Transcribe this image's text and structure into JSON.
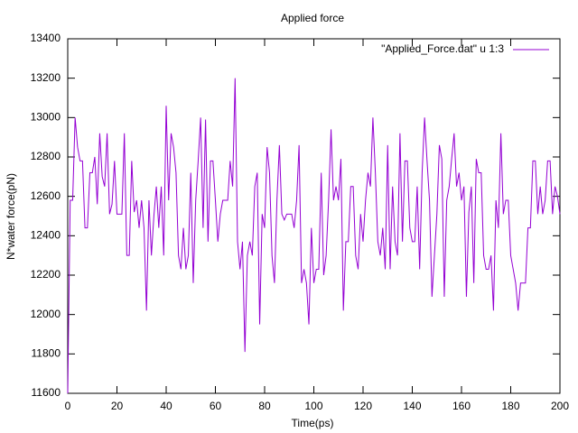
{
  "chart_data": {
    "type": "line",
    "title": "Applied force",
    "xlabel": "Time(ps)",
    "ylabel": "N*water force(pN)",
    "x": [
      0,
      1,
      2,
      3,
      4,
      5,
      6,
      7,
      8,
      9,
      10,
      11,
      12,
      13,
      14,
      15,
      16,
      17,
      18,
      19,
      20,
      21,
      22,
      23,
      24,
      25,
      26,
      27,
      28,
      29,
      30,
      31,
      32,
      33,
      34,
      35,
      36,
      37,
      38,
      39,
      40,
      41,
      42,
      43,
      44,
      45,
      46,
      47,
      48,
      49,
      50,
      51,
      52,
      53,
      54,
      55,
      56,
      57,
      58,
      59,
      60,
      61,
      62,
      63,
      64,
      65,
      66,
      67,
      68,
      69,
      70,
      71,
      72,
      73,
      74,
      75,
      76,
      77,
      78,
      79,
      80,
      81,
      82,
      83,
      84,
      85,
      86,
      87,
      88,
      89,
      90,
      91,
      92,
      93,
      94,
      95,
      96,
      97,
      98,
      99,
      100,
      101,
      102,
      103,
      104,
      105,
      106,
      107,
      108,
      109,
      110,
      111,
      112,
      113,
      114,
      115,
      116,
      117,
      118,
      119,
      120,
      121,
      122,
      123,
      124,
      125,
      126,
      127,
      128,
      129,
      130,
      131,
      132,
      133,
      134,
      135,
      136,
      137,
      138,
      139,
      140,
      141,
      142,
      143,
      144,
      145,
      146,
      147,
      148,
      149,
      150,
      151,
      152,
      153,
      154,
      155,
      156,
      157,
      158,
      159,
      160,
      161,
      162,
      163,
      164,
      165,
      166,
      167,
      168,
      169,
      170,
      171,
      172,
      173,
      174,
      175,
      176,
      177,
      178,
      179,
      180,
      181,
      182,
      183,
      184,
      185,
      186,
      187,
      188,
      189,
      190,
      191,
      192,
      193,
      194,
      195,
      196,
      197,
      198,
      199,
      200
    ],
    "series": [
      {
        "name": "\"Applied_Force.dat\" u 1:3",
        "color": "#9400d3",
        "values": [
          11600,
          12580,
          12580,
          13000,
          12850,
          12780,
          12780,
          12440,
          12440,
          12720,
          12720,
          12800,
          12560,
          12920,
          12700,
          12650,
          12920,
          12510,
          12560,
          12780,
          12510,
          12510,
          12510,
          12920,
          12300,
          12300,
          12780,
          12520,
          12580,
          12440,
          12580,
          12440,
          12020,
          12580,
          12300,
          12500,
          12650,
          12440,
          12650,
          12300,
          13060,
          12580,
          12920,
          12850,
          12720,
          12300,
          12230,
          12440,
          12230,
          12300,
          12720,
          12160,
          12580,
          12780,
          13000,
          12440,
          12990,
          12370,
          12780,
          12780,
          12580,
          12370,
          12510,
          12580,
          12580,
          12580,
          12780,
          12650,
          13200,
          12370,
          12230,
          12370,
          11810,
          12300,
          12370,
          12300,
          12650,
          12720,
          11950,
          12510,
          12440,
          12850,
          12720,
          12300,
          12160,
          12580,
          12860,
          12510,
          12480,
          12510,
          12510,
          12510,
          12440,
          12580,
          12860,
          12160,
          12230,
          12160,
          11950,
          12440,
          12160,
          12230,
          12230,
          12720,
          12200,
          12300,
          12580,
          12940,
          12580,
          12650,
          12580,
          12790,
          12020,
          12370,
          12370,
          12650,
          12650,
          12300,
          12230,
          12510,
          12370,
          12580,
          12720,
          12650,
          13000,
          12720,
          12370,
          12300,
          12440,
          12230,
          12860,
          12230,
          12650,
          12370,
          12300,
          12920,
          12370,
          12780,
          12780,
          12440,
          12370,
          12370,
          12650,
          12230,
          12720,
          13000,
          12780,
          12580,
          12090,
          12300,
          12510,
          12860,
          12790,
          12090,
          12580,
          12650,
          12790,
          12920,
          12650,
          12720,
          12580,
          12650,
          12090,
          12520,
          12650,
          12160,
          12790,
          12720,
          12720,
          12300,
          12230,
          12230,
          12300,
          12020,
          12580,
          12440,
          12920,
          12510,
          12580,
          12580,
          12300,
          12230,
          12160,
          12020,
          12160,
          12160,
          12160,
          12440,
          12440,
          12780,
          12780,
          12510,
          12650,
          12510,
          12580,
          12780,
          12780,
          12510,
          12650,
          12600,
          12510
        ]
      }
    ],
    "xlim": [
      0,
      200
    ],
    "xticks": [
      0,
      20,
      40,
      60,
      80,
      100,
      120,
      140,
      160,
      180,
      200
    ],
    "ylim": [
      11600,
      13400
    ],
    "yticks": [
      11600,
      11800,
      12000,
      12200,
      12400,
      12600,
      12800,
      13000,
      13200,
      13400
    ],
    "legend": "top-right",
    "grid": false
  }
}
